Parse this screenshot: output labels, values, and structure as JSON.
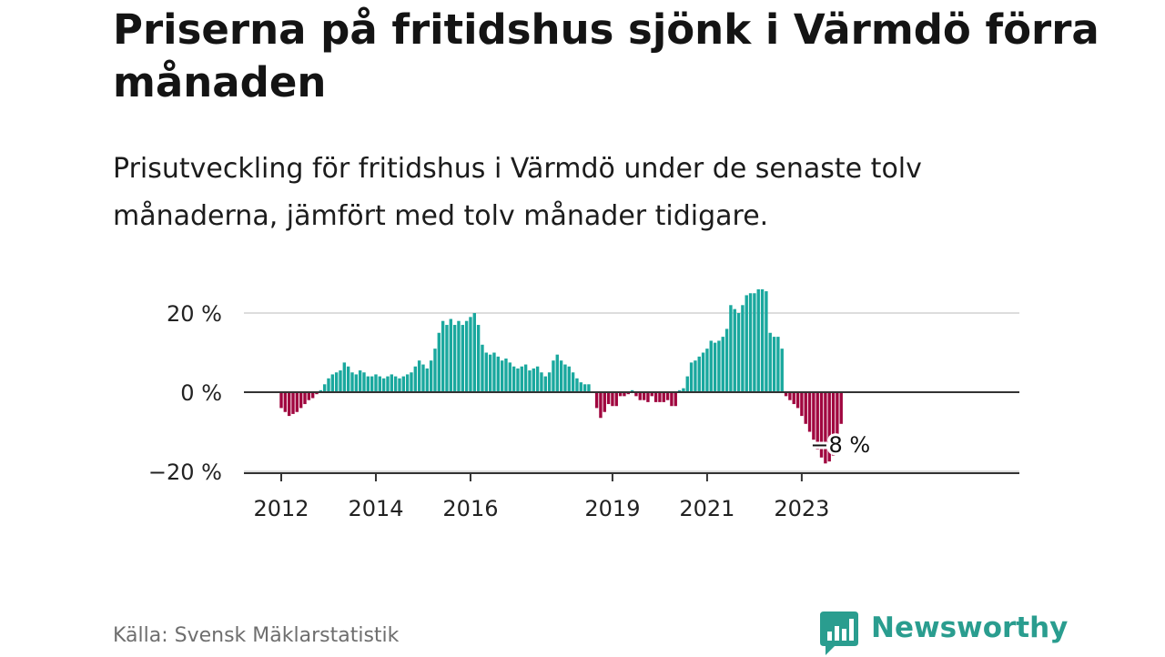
{
  "title": "Priserna på fritidshus sjönk i Värmdö förra månaden",
  "subtitle": "Prisutveckling för fritidshus i Värmdö under de senaste tolv månaderna, jämfört med tolv månader tidigare.",
  "source": "Källa: Svensk Mäklarstatistik",
  "logo": {
    "text": "Newsworthy",
    "icon": "newsworthy-bar-chart-icon"
  },
  "colors": {
    "positive": "#1aa89e",
    "negative": "#a0063f",
    "grid": "#dddddd",
    "axis": "#333333",
    "brand": "#2a9d8f"
  },
  "chart_data": {
    "type": "bar",
    "title": "Priserna på fritidshus sjönk i Värmdö förra månaden",
    "xlabel": "",
    "ylabel": "",
    "ylim": [
      -20,
      25
    ],
    "yticks": [
      20,
      0,
      -20
    ],
    "ytick_labels": [
      "20 %",
      "0 %",
      "−20 %"
    ],
    "xticks": [
      {
        "label": "2012",
        "index": 0
      },
      {
        "label": "2014",
        "index": 24
      },
      {
        "label": "2016",
        "index": 48
      },
      {
        "label": "2019",
        "index": 84
      },
      {
        "label": "2021",
        "index": 108
      },
      {
        "label": "2023",
        "index": 132
      }
    ],
    "x_start": "2012-01",
    "frequency": "monthly",
    "end_label": "−8 %",
    "grid": true,
    "values": [
      -4,
      -5,
      -6,
      -5.5,
      -5,
      -4,
      -3,
      -2,
      -1.5,
      -0.5,
      0.5,
      2,
      3.5,
      4.5,
      5,
      5.5,
      7.5,
      6.5,
      5,
      4.5,
      5.5,
      5,
      4,
      4,
      4.5,
      4,
      3.5,
      4,
      4.5,
      4,
      3.5,
      4,
      4.5,
      5,
      6.5,
      8,
      7,
      6,
      8,
      11,
      15,
      18,
      17,
      18.5,
      17,
      18,
      17,
      18,
      19,
      20,
      17,
      12,
      10,
      9.5,
      10,
      9,
      8,
      8.5,
      7.5,
      6.5,
      6,
      6.5,
      7,
      5.5,
      6,
      6.5,
      5,
      4,
      5,
      8,
      9.5,
      8,
      7,
      6.5,
      5,
      3.5,
      2.5,
      2,
      2,
      0,
      -4,
      -6.5,
      -5,
      -3,
      -3.5,
      -3.5,
      -1,
      -1,
      -0.5,
      0.5,
      -1,
      -2,
      -2,
      -2.5,
      -1,
      -2.5,
      -2.5,
      -2.5,
      -2,
      -3.5,
      -3.5,
      0.5,
      1,
      4,
      7.5,
      8,
      9,
      10,
      11,
      13,
      12.5,
      13,
      14,
      16,
      22,
      21,
      20,
      22,
      24.5,
      25,
      25,
      26,
      26,
      25.5,
      15,
      14,
      14,
      11,
      -1,
      -2,
      -3,
      -4,
      -6,
      -8,
      -10,
      -12,
      -14.5,
      -16.5,
      -18,
      -17.5,
      -16,
      -12,
      -8
    ]
  }
}
